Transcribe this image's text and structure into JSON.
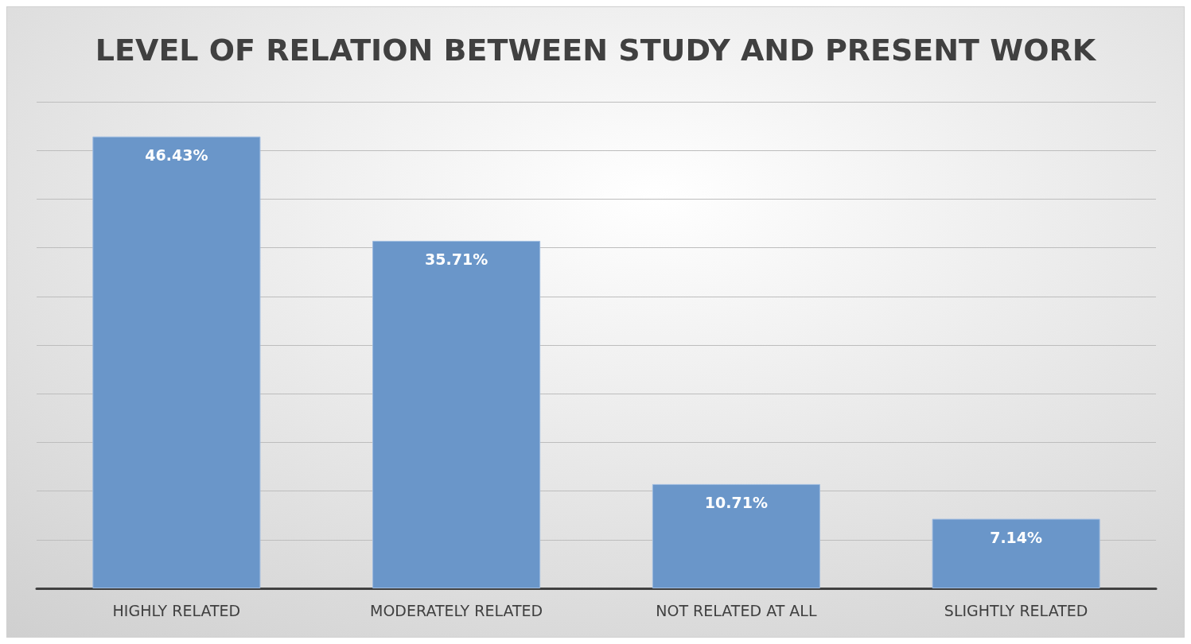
{
  "chart_data": {
    "type": "bar",
    "title": "LEVEL OF RELATION BETWEEN STUDY AND PRESENT WORK",
    "categories": [
      "HIGHLY RELATED",
      "MODERATELY RELATED",
      "NOT RELATED AT ALL",
      "SLIGHTLY RELATED"
    ],
    "values": [
      46.43,
      35.71,
      10.71,
      7.14
    ],
    "value_labels": [
      "46.43%",
      "35.71%",
      "10.71%",
      "7.14%"
    ],
    "color": "#6a96c9",
    "ylim": [
      0,
      50
    ],
    "yticks": [
      {
        "value": 0,
        "label": null
      },
      {
        "value": 5,
        "label": null
      },
      {
        "value": 10,
        "label": null
      },
      {
        "value": 15,
        "label": null
      },
      {
        "value": 20,
        "label": null
      },
      {
        "value": 25,
        "label": null
      },
      {
        "value": 30,
        "label": null
      },
      {
        "value": 35,
        "label": null
      },
      {
        "value": 40,
        "label": null
      },
      {
        "value": 45,
        "label": null
      },
      {
        "value": 50,
        "label": null
      }
    ],
    "grid": "y",
    "tick_labels": "x"
  }
}
